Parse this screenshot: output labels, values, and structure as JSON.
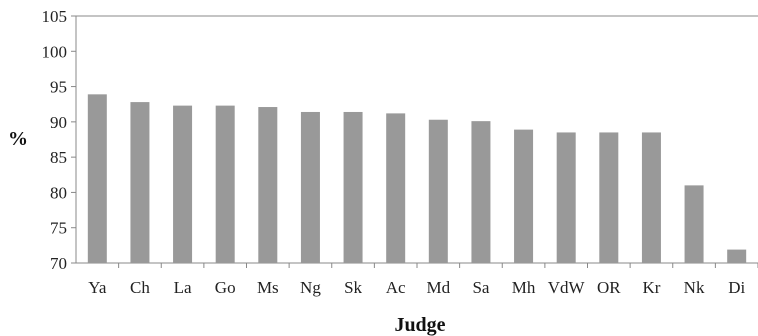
{
  "chart_data": {
    "type": "bar",
    "categories": [
      "Ya",
      "Ch",
      "La",
      "Go",
      "Ms",
      "Ng",
      "Sk",
      "Ac",
      "Md",
      "Sa",
      "Mh",
      "VdW",
      "OR",
      "Kr",
      "Nk",
      "Di"
    ],
    "values": [
      93.9,
      92.8,
      92.3,
      92.3,
      92.1,
      91.4,
      91.4,
      91.2,
      90.3,
      90.1,
      88.9,
      88.5,
      88.5,
      88.5,
      81.0,
      71.9
    ],
    "title": "",
    "xlabel": "Judge",
    "ylabel": "%",
    "ylim": [
      70,
      105
    ],
    "yticks": [
      70,
      75,
      80,
      85,
      90,
      95,
      100,
      105
    ],
    "grid": false,
    "legend": "none",
    "bar_color": "#999999",
    "axis_color": "#888888"
  }
}
